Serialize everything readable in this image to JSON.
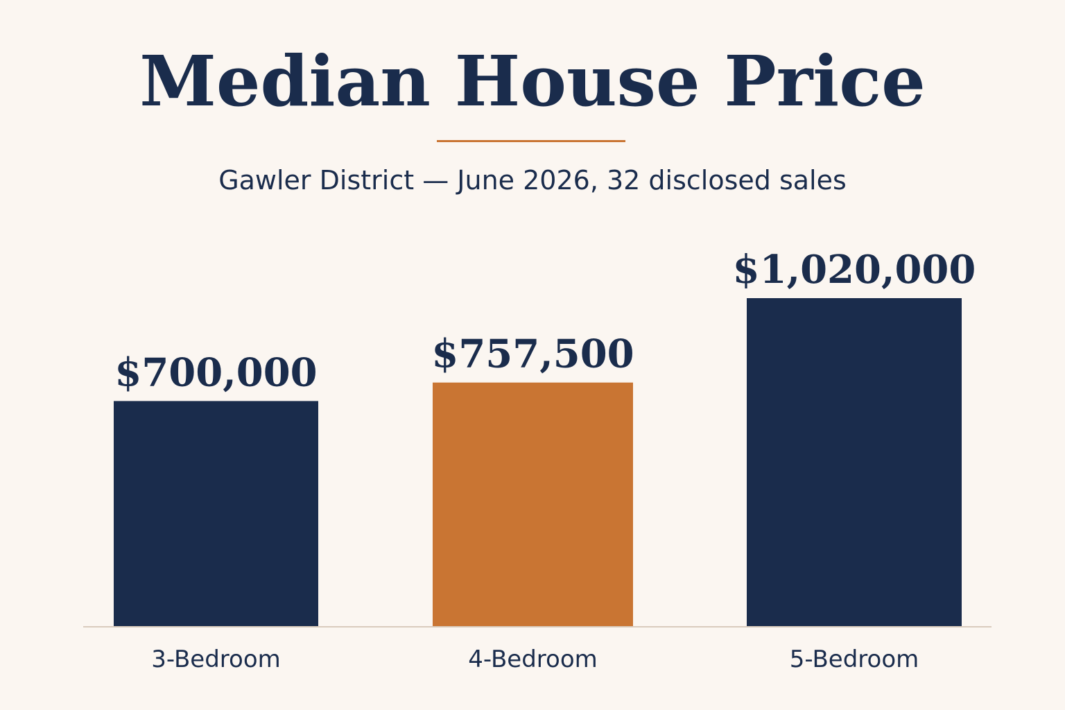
{
  "page": {
    "title": "Median House Price",
    "subtitle": "Gawler District — June 2026, 32 disclosed sales"
  },
  "colors": {
    "background": "#fbf6f1",
    "navy": "#1a2c4c",
    "orange": "#c97533",
    "baseline": "#d9cbbd"
  },
  "chart_data": {
    "type": "bar",
    "title": "Median House Price",
    "subtitle": "Gawler District — June 2026, 32 disclosed sales",
    "xlabel": "",
    "ylabel": "",
    "categories": [
      "3-Bedroom",
      "4-Bedroom",
      "5-Bedroom"
    ],
    "values": [
      700000,
      757500,
      1020000
    ],
    "value_labels": [
      "$700,000",
      "$757,500",
      "$1,020,000"
    ],
    "bar_colors": [
      "#1a2c4c",
      "#c97533",
      "#1a2c4c"
    ],
    "highlighted_category": "4-Bedroom",
    "grid": false,
    "legend": "none",
    "y_axis_shown": false
  }
}
